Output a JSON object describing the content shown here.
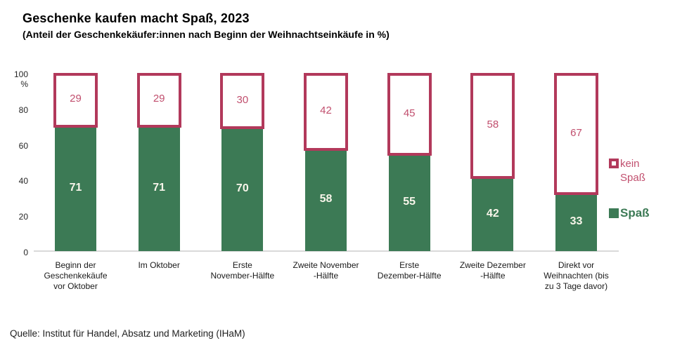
{
  "title": "Geschenke kaufen macht Spaß, 2023",
  "subtitle": "(Anteil der Geschenkekäufer:innen nach Beginn der Weihnachtseinkäufe in %)",
  "source": "Quelle: Institut für Handel, Absatz und Marketing (IHaM)",
  "y_axis": {
    "unit_label": "%",
    "ticks": [
      100,
      80,
      60,
      40,
      20,
      0
    ]
  },
  "legend": {
    "position": "right",
    "items": [
      {
        "label": "kein Spaß",
        "lines": [
          "kein",
          "Spaß"
        ],
        "swatch": "outline"
      },
      {
        "label": "Spaß",
        "lines": [
          "Spaß"
        ],
        "swatch": "solid"
      }
    ]
  },
  "colors": {
    "spass_fill": "#3C7A55",
    "kein_border": "#B2395B",
    "kein_text": "#C14F6E",
    "bar_value_text": "#F8F5EA",
    "axis_line": "#D9D9D9",
    "axis_text": "#262626",
    "label_text": "#1A1A1A"
  },
  "chart_data": {
    "type": "bar",
    "stacked": true,
    "title": "Geschenke kaufen macht Spaß, 2023",
    "subtitle": "(Anteil der Geschenkekäufer:innen nach Beginn der Weihnachtseinkäufe in %)",
    "xlabel": "",
    "ylabel": "%",
    "ylim": [
      0,
      100
    ],
    "grid": false,
    "legend_position": "right",
    "categories": [
      "Beginn der Geschenkekäufe vor Oktober",
      "Im Oktober",
      "Erste November-Hälfte",
      "Zweite November-Hälfte",
      "Erste Dezember-Hälfte",
      "Zweite Dezember-Hälfte",
      "Direkt vor Weihnachten (bis zu 3 Tage davor)"
    ],
    "category_lines": [
      [
        "Beginn der",
        "Geschenkekäufe",
        "vor Oktober"
      ],
      [
        "Im Oktober"
      ],
      [
        "Erste",
        "November-Hälfte"
      ],
      [
        "Zweite November",
        "-Hälfte"
      ],
      [
        "Erste",
        "Dezember-Hälfte"
      ],
      [
        "Zweite Dezember",
        "-Hälfte"
      ],
      [
        "Direkt vor",
        "Weihnachten (bis",
        "zu 3 Tage davor)"
      ]
    ],
    "series": [
      {
        "name": "Spaß",
        "values": [
          71,
          71,
          70,
          58,
          55,
          42,
          33
        ]
      },
      {
        "name": "kein Spaß",
        "values": [
          29,
          29,
          30,
          42,
          45,
          58,
          67
        ]
      }
    ]
  }
}
